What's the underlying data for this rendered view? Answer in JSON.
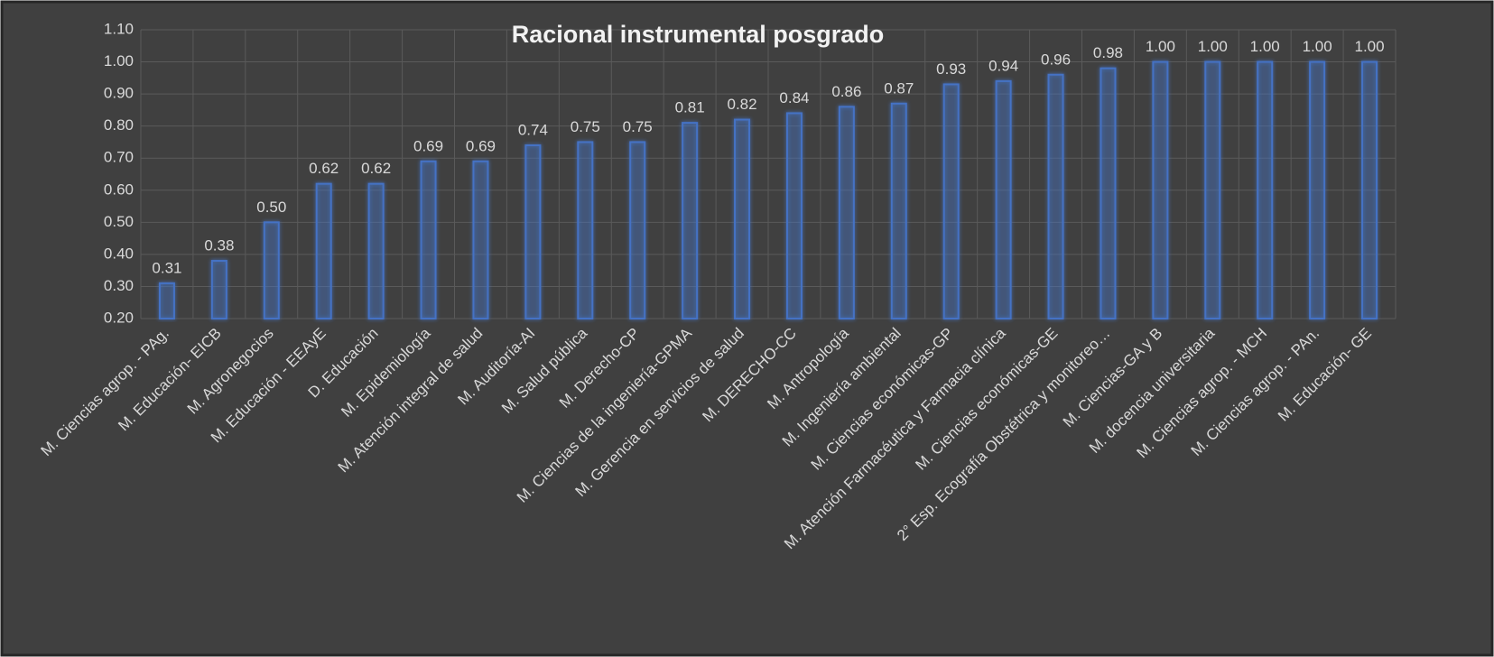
{
  "chart_data": {
    "type": "bar",
    "title": "Racional instrumental posgrado",
    "categories": [
      "M. Ciencias agrop. - PAg.",
      "M. Educación- EICB",
      "M. Agronegocios",
      "M. Educación - EEAyE",
      "D. Educación",
      "M. Epidemiología",
      "M. Atención integral de salud",
      "M. Auditoría-AI",
      "M. Salud pública",
      "M. Derecho-CP",
      "M. Ciencias de la ingeniería-GPMA",
      "M. Gerencia en servicios de salud",
      "M. DERECHO-CC",
      "M. Antropología",
      "M. Ingeniería ambiental",
      "M. Ciencias económicas-GP",
      "M. Atención Farmacéutica y Farmacia clínica",
      "M. Ciencias económicas-GE",
      "2° Esp. Ecografía Obstétrica y monitoreo…",
      "M. Ciencias-GA y B",
      "M. docencia universitaria",
      "M. Ciencias agrop. - MCH",
      "M. Ciencias agrop. - PAn.",
      "M. Educación- GE"
    ],
    "values": [
      0.31,
      0.38,
      0.5,
      0.62,
      0.62,
      0.69,
      0.69,
      0.74,
      0.75,
      0.75,
      0.81,
      0.82,
      0.84,
      0.86,
      0.87,
      0.93,
      0.94,
      0.96,
      0.98,
      1.0,
      1.0,
      1.0,
      1.0,
      1.0
    ],
    "value_labels": [
      "0.31",
      "0.38",
      "0.50",
      "0.62",
      "0.62",
      "0.69",
      "0.69",
      "0.74",
      "0.75",
      "0.75",
      "0.81",
      "0.82",
      "0.84",
      "0.86",
      "0.87",
      "0.93",
      "0.94",
      "0.96",
      "0.98",
      "1.00",
      "1.00",
      "1.00",
      "1.00",
      "1.00"
    ],
    "color": "#4472c4",
    "ylim": [
      0.2,
      1.1
    ],
    "yticks": [
      {
        "value": 0.2,
        "label": "0.20"
      },
      {
        "value": 0.3,
        "label": "0.30"
      },
      {
        "value": 0.4,
        "label": "0.40"
      },
      {
        "value": 0.5,
        "label": "0.50"
      },
      {
        "value": 0.6,
        "label": "0.60"
      },
      {
        "value": 0.7,
        "label": "0.70"
      },
      {
        "value": 0.8,
        "label": "0.80"
      },
      {
        "value": 0.9,
        "label": "0.90"
      },
      {
        "value": 1.0,
        "label": "1.00"
      },
      {
        "value": 1.1,
        "label": "1.10"
      }
    ],
    "grid": true
  }
}
